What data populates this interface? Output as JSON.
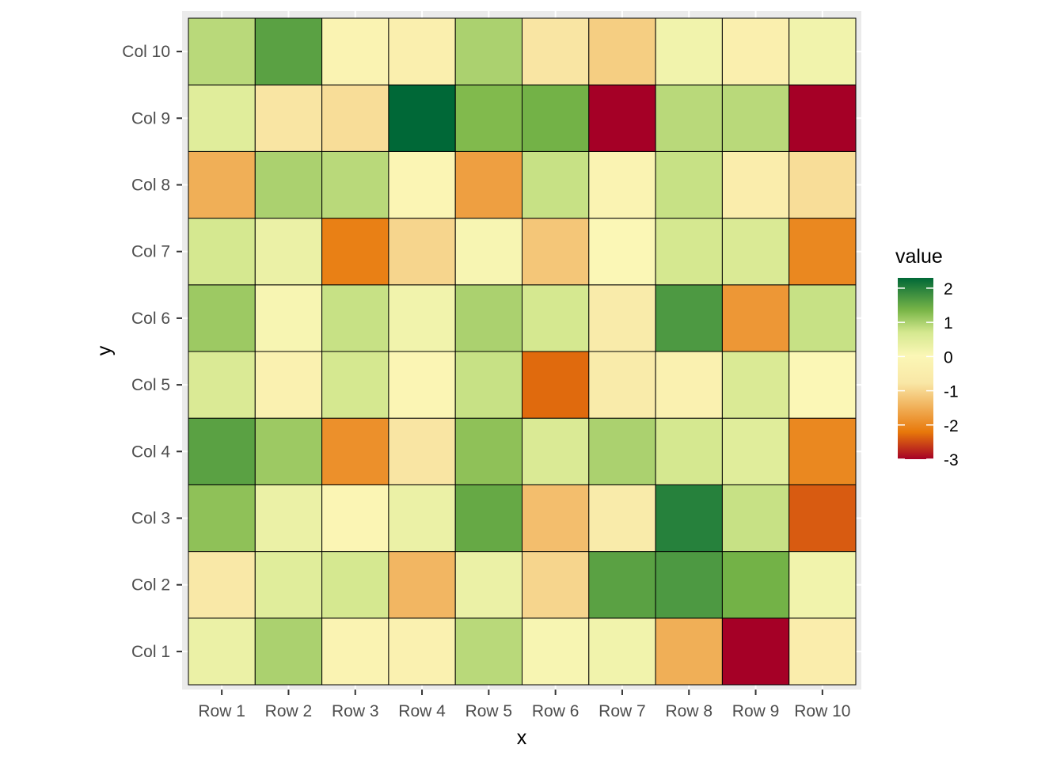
{
  "chart_data": {
    "type": "heatmap",
    "title": "",
    "xlabel": "x",
    "ylabel": "y",
    "x_categories": [
      "Row 1",
      "Row 2",
      "Row 3",
      "Row 4",
      "Row 5",
      "Row 6",
      "Row 7",
      "Row 8",
      "Row 9",
      "Row 10"
    ],
    "y_categories": [
      "Col 1",
      "Col 2",
      "Col 3",
      "Col 4",
      "Col 5",
      "Col 6",
      "Col 7",
      "Col 8",
      "Col 9",
      "Col 10"
    ],
    "values": [
      [
        0.3,
        -0.7,
        1.2,
        1.6,
        0.6,
        1.1,
        0.7,
        -1.5,
        0.5,
        0.9
      ],
      [
        1.0,
        0.5,
        0.3,
        1.1,
        -0.3,
        0.1,
        0.3,
        1.0,
        -0.8,
        1.6
      ],
      [
        -0.2,
        0.7,
        -0.1,
        -1.9,
        0.7,
        0.8,
        -2.1,
        0.9,
        -0.9,
        -0.2
      ],
      [
        -0.3,
        -1.4,
        0.3,
        -0.8,
        -0.1,
        0.2,
        -1.0,
        -0.1,
        2.3,
        -0.4
      ],
      [
        0.9,
        0.3,
        1.5,
        1.2,
        0.8,
        1.0,
        0.1,
        -1.7,
        1.3,
        1.0
      ],
      [
        0.1,
        -1.0,
        -1.3,
        0.6,
        -2.3,
        0.7,
        -1.2,
        0.8,
        1.4,
        -0.8
      ],
      [
        0.2,
        1.6,
        -0.6,
        1.0,
        -0.6,
        -0.6,
        0.0,
        -0.2,
        -3.0,
        -1.1
      ],
      [
        -1.5,
        1.7,
        2.0,
        0.7,
        -0.3,
        1.7,
        0.7,
        0.8,
        0.9,
        0.2
      ],
      [
        -3.0,
        1.4,
        0.8,
        0.5,
        0.6,
        -1.8,
        0.6,
        -0.5,
        0.9,
        -0.4
      ],
      [
        -0.5,
        0.2,
        -2.4,
        -2.0,
        0.0,
        0.8,
        -2.0,
        -0.9,
        -3.0,
        0.2
      ]
    ],
    "values_layout": "values[x_index][y_index]",
    "legend": {
      "title": "value",
      "position": "right",
      "breaks": [
        2,
        1,
        0,
        -1,
        -2,
        -3
      ],
      "break_labels": [
        "2",
        "1",
        "0",
        "-1",
        "-2",
        "-3"
      ],
      "range": [
        -3.0,
        2.3
      ]
    },
    "colors": {
      "low": "#a50026",
      "low_mid": "#e8780a",
      "mid_low": "#f9e7a6",
      "mid": "#fbf7b6",
      "mid_high": "#d4e88f",
      "high_mid": "#7ab648",
      "high": "#006837"
    },
    "panel_background": "#ebebeb",
    "grid": true
  }
}
